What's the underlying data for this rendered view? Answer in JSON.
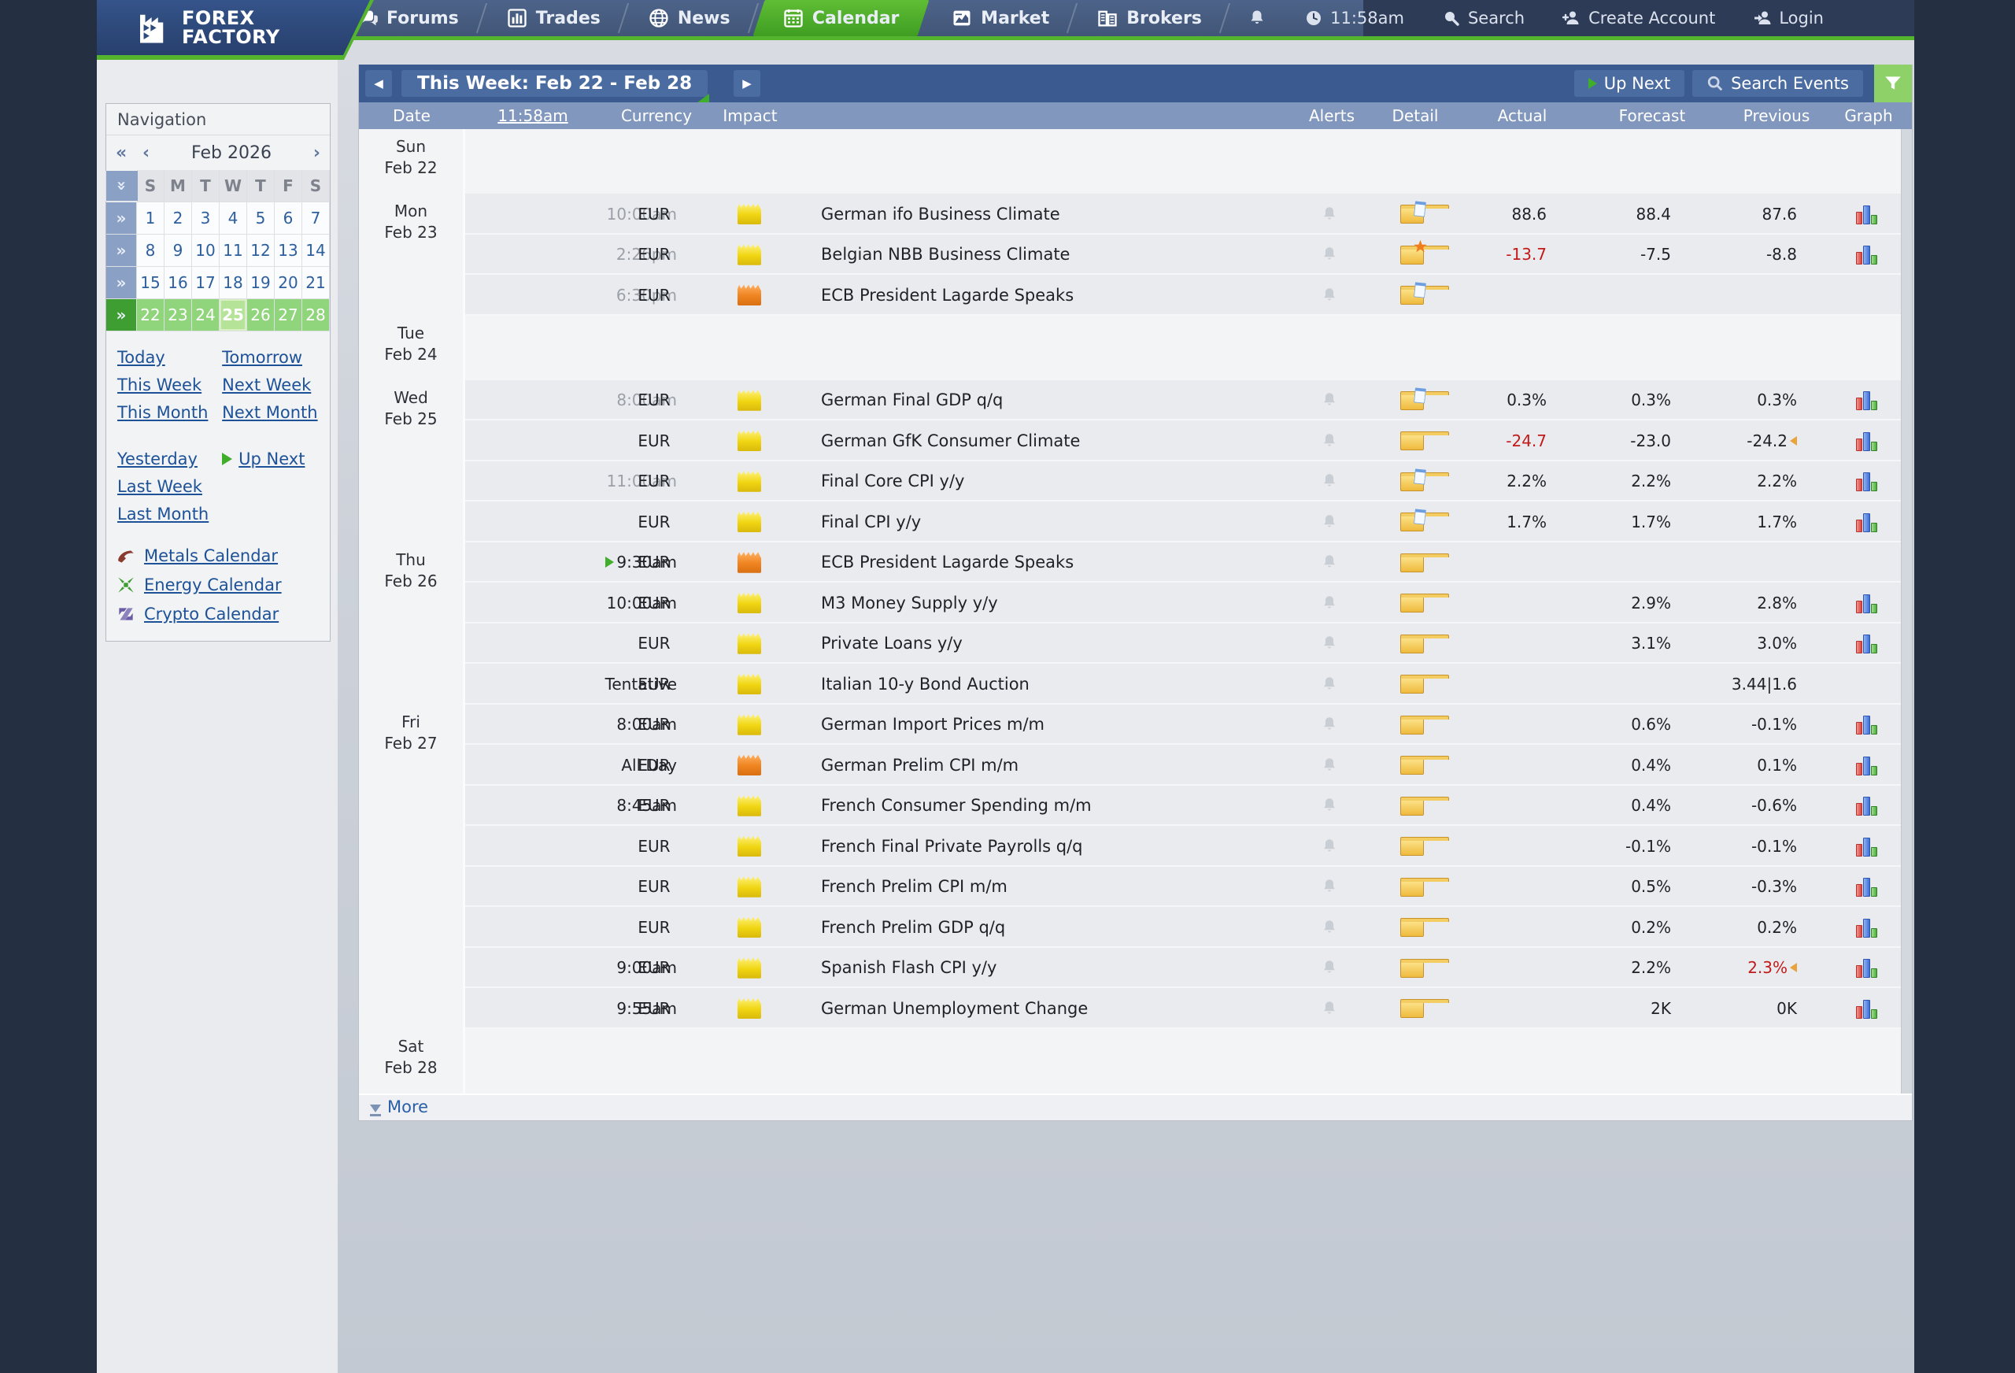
{
  "nav": {
    "logo_line1": "FOREX",
    "logo_line2": "FACTORY",
    "tabs": [
      {
        "label": "Forums",
        "icon": "forums-icon",
        "active": false
      },
      {
        "label": "Trades",
        "icon": "trades-icon",
        "active": false
      },
      {
        "label": "News",
        "icon": "news-icon",
        "active": false
      },
      {
        "label": "Calendar",
        "icon": "calendar-icon",
        "active": true
      },
      {
        "label": "Market",
        "icon": "market-icon",
        "active": false
      },
      {
        "label": "Brokers",
        "icon": "brokers-icon",
        "active": false
      }
    ],
    "utility": [
      {
        "label": "",
        "icon": "bell-icon",
        "name": "notifications"
      },
      {
        "label": "11:58am",
        "icon": "clock-icon",
        "name": "current-time"
      },
      {
        "label": "Search",
        "icon": "search-icon",
        "name": "search"
      },
      {
        "label": "Create Account",
        "icon": "create-account-icon",
        "name": "create-account"
      },
      {
        "label": "Login",
        "icon": "login-icon",
        "name": "login"
      }
    ],
    "accent_green": "#54b42d",
    "navy": "#415677"
  },
  "sidebar": {
    "title": "Navigation",
    "month": "Feb 2026",
    "prev_year": "«",
    "prev_month": "‹",
    "next_month": "›",
    "day_headers": [
      "S",
      "M",
      "T",
      "W",
      "T",
      "F",
      "S"
    ],
    "weeks": [
      {
        "days": [
          1,
          2,
          3,
          4,
          5,
          6,
          7
        ],
        "active": false
      },
      {
        "days": [
          8,
          9,
          10,
          11,
          12,
          13,
          14
        ],
        "active": false
      },
      {
        "days": [
          15,
          16,
          17,
          18,
          19,
          20,
          21
        ],
        "active": false
      },
      {
        "days": [
          22,
          23,
          24,
          25,
          26,
          27,
          28
        ],
        "active": true
      }
    ],
    "selected_day": 25,
    "quick_links_left": [
      "Today",
      "This Week",
      "This Month"
    ],
    "quick_links_right": [
      "Tomorrow",
      "Next Week",
      "Next Month"
    ],
    "quick_links_left2": [
      "Yesterday",
      "Last Week",
      "Last Month"
    ],
    "up_next_label": "Up Next",
    "calendar_links": [
      {
        "label": "Metals Calendar",
        "icon": "metals-icon",
        "color": "#8a3b2f"
      },
      {
        "label": "Energy Calendar",
        "icon": "energy-icon",
        "color": "#3f9e31"
      },
      {
        "label": "Crypto Calendar",
        "icon": "crypto-icon",
        "color": "#6b5ca8"
      }
    ]
  },
  "calendar_bar": {
    "title": "This Week: Feb 22 - Feb 28",
    "prev_arrow": "◀",
    "next_arrow": "▶",
    "up_next": "Up Next",
    "search_events": "Search Events",
    "filter_color": "#8ed168"
  },
  "table": {
    "columns": [
      "Date",
      "11:58am",
      "Currency",
      "Impact",
      "Alerts",
      "Detail",
      "Actual",
      "Forecast",
      "Previous",
      "Graph"
    ],
    "time_column_is_link": true,
    "more_label": "More",
    "days": [
      {
        "day": "Sun",
        "date": "Feb 22",
        "events": []
      },
      {
        "day": "Mon",
        "date": "Feb 23",
        "events": [
          {
            "time": "10:00am",
            "time_past": true,
            "currency": "EUR",
            "impact": "yellow",
            "name": "German ifo Business Climate",
            "detail": "doc",
            "actual": "88.6",
            "actual_red": false,
            "forecast": "88.4",
            "previous": "87.6",
            "previous_red": false,
            "revised": false,
            "graph": true,
            "upnext": false
          },
          {
            "time": "2:26pm",
            "time_past": true,
            "currency": "EUR",
            "impact": "yellow",
            "name": "Belgian NBB Business Climate",
            "detail": "star",
            "actual": "-13.7",
            "actual_red": true,
            "forecast": "-7.5",
            "previous": "-8.8",
            "previous_red": false,
            "revised": false,
            "graph": true,
            "upnext": false
          },
          {
            "time": "6:30pm",
            "time_past": true,
            "currency": "EUR",
            "impact": "orange",
            "name": "ECB President Lagarde Speaks",
            "detail": "doc",
            "actual": "",
            "actual_red": false,
            "forecast": "",
            "previous": "",
            "previous_red": false,
            "revised": false,
            "graph": false,
            "upnext": false
          }
        ]
      },
      {
        "day": "Tue",
        "date": "Feb 24",
        "events": []
      },
      {
        "day": "Wed",
        "date": "Feb 25",
        "events": [
          {
            "time": "8:00am",
            "time_past": true,
            "currency": "EUR",
            "impact": "yellow",
            "name": "German Final GDP q/q",
            "detail": "doc",
            "actual": "0.3%",
            "actual_red": false,
            "forecast": "0.3%",
            "previous": "0.3%",
            "previous_red": false,
            "revised": false,
            "graph": true,
            "upnext": false
          },
          {
            "time": "",
            "time_past": true,
            "currency": "EUR",
            "impact": "yellow",
            "name": "German GfK Consumer Climate",
            "detail": "plain",
            "actual": "-24.7",
            "actual_red": true,
            "forecast": "-23.0",
            "previous": "-24.2",
            "previous_red": false,
            "revised": true,
            "graph": true,
            "upnext": false
          },
          {
            "time": "11:00am",
            "time_past": true,
            "currency": "EUR",
            "impact": "yellow",
            "name": "Final Core CPI y/y",
            "detail": "doc",
            "actual": "2.2%",
            "actual_red": false,
            "forecast": "2.2%",
            "previous": "2.2%",
            "previous_red": false,
            "revised": false,
            "graph": true,
            "upnext": false
          },
          {
            "time": "",
            "time_past": true,
            "currency": "EUR",
            "impact": "yellow",
            "name": "Final CPI y/y",
            "detail": "doc",
            "actual": "1.7%",
            "actual_red": false,
            "forecast": "1.7%",
            "previous": "1.7%",
            "previous_red": false,
            "revised": false,
            "graph": true,
            "upnext": false
          }
        ]
      },
      {
        "day": "Thu",
        "date": "Feb 26",
        "events": [
          {
            "time": "9:30am",
            "time_past": false,
            "currency": "EUR",
            "impact": "orange",
            "name": "ECB President Lagarde Speaks",
            "detail": "plain",
            "actual": "",
            "actual_red": false,
            "forecast": "",
            "previous": "",
            "previous_red": false,
            "revised": false,
            "graph": false,
            "upnext": true
          },
          {
            "time": "10:00am",
            "time_past": false,
            "currency": "EUR",
            "impact": "yellow",
            "name": "M3 Money Supply y/y",
            "detail": "plain",
            "actual": "",
            "actual_red": false,
            "forecast": "2.9%",
            "previous": "2.8%",
            "previous_red": false,
            "revised": false,
            "graph": true,
            "upnext": false
          },
          {
            "time": "",
            "time_past": false,
            "currency": "EUR",
            "impact": "yellow",
            "name": "Private Loans y/y",
            "detail": "plain",
            "actual": "",
            "actual_red": false,
            "forecast": "3.1%",
            "previous": "3.0%",
            "previous_red": false,
            "revised": false,
            "graph": true,
            "upnext": false
          },
          {
            "time": "Tentative",
            "time_past": false,
            "currency": "EUR",
            "impact": "yellow",
            "name": "Italian 10-y Bond Auction",
            "detail": "plain",
            "actual": "",
            "actual_red": false,
            "forecast": "",
            "previous": "3.44|1.6",
            "previous_red": false,
            "revised": false,
            "graph": false,
            "upnext": false
          }
        ]
      },
      {
        "day": "Fri",
        "date": "Feb 27",
        "events": [
          {
            "time": "8:00am",
            "time_past": false,
            "currency": "EUR",
            "impact": "yellow",
            "name": "German Import Prices m/m",
            "detail": "plain",
            "actual": "",
            "actual_red": false,
            "forecast": "0.6%",
            "previous": "-0.1%",
            "previous_red": false,
            "revised": false,
            "graph": true,
            "upnext": false
          },
          {
            "time": "All Day",
            "time_past": false,
            "currency": "EUR",
            "impact": "orange",
            "name": "German Prelim CPI m/m",
            "detail": "plain",
            "actual": "",
            "actual_red": false,
            "forecast": "0.4%",
            "previous": "0.1%",
            "previous_red": false,
            "revised": false,
            "graph": true,
            "upnext": false
          },
          {
            "time": "8:45am",
            "time_past": false,
            "currency": "EUR",
            "impact": "yellow",
            "name": "French Consumer Spending m/m",
            "detail": "plain",
            "actual": "",
            "actual_red": false,
            "forecast": "0.4%",
            "previous": "-0.6%",
            "previous_red": false,
            "revised": false,
            "graph": true,
            "upnext": false
          },
          {
            "time": "",
            "time_past": false,
            "currency": "EUR",
            "impact": "yellow",
            "name": "French Final Private Payrolls q/q",
            "detail": "plain",
            "actual": "",
            "actual_red": false,
            "forecast": "-0.1%",
            "previous": "-0.1%",
            "previous_red": false,
            "revised": false,
            "graph": true,
            "upnext": false
          },
          {
            "time": "",
            "time_past": false,
            "currency": "EUR",
            "impact": "yellow",
            "name": "French Prelim CPI m/m",
            "detail": "plain",
            "actual": "",
            "actual_red": false,
            "forecast": "0.5%",
            "previous": "-0.3%",
            "previous_red": false,
            "revised": false,
            "graph": true,
            "upnext": false
          },
          {
            "time": "",
            "time_past": false,
            "currency": "EUR",
            "impact": "yellow",
            "name": "French Prelim GDP q/q",
            "detail": "plain",
            "actual": "",
            "actual_red": false,
            "forecast": "0.2%",
            "previous": "0.2%",
            "previous_red": false,
            "revised": false,
            "graph": true,
            "upnext": false
          },
          {
            "time": "9:00am",
            "time_past": false,
            "currency": "EUR",
            "impact": "yellow",
            "name": "Spanish Flash CPI y/y",
            "detail": "plain",
            "actual": "",
            "actual_red": false,
            "forecast": "2.2%",
            "previous": "2.3%",
            "previous_red": true,
            "revised": true,
            "graph": true,
            "upnext": false
          },
          {
            "time": "9:55am",
            "time_past": false,
            "currency": "EUR",
            "impact": "yellow",
            "name": "German Unemployment Change",
            "detail": "plain",
            "actual": "",
            "actual_red": false,
            "forecast": "2K",
            "previous": "0K",
            "previous_red": false,
            "revised": false,
            "graph": true,
            "upnext": false
          }
        ]
      },
      {
        "day": "Sat",
        "date": "Feb 28",
        "events": []
      }
    ]
  }
}
